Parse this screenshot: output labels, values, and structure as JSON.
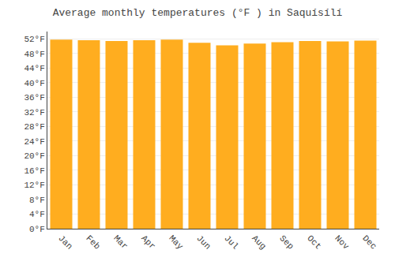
{
  "chart_data": {
    "type": "bar",
    "title": "Average monthly temperatures (°F ) in Saquísílí",
    "categories": [
      "Jan",
      "Feb",
      "Mar",
      "Apr",
      "May",
      "Jun",
      "Jul",
      "Aug",
      "Sep",
      "Oct",
      "Nov",
      "Dec"
    ],
    "values": [
      51.8,
      51.6,
      51.4,
      51.6,
      51.8,
      50.9,
      50.2,
      50.7,
      51.1,
      51.4,
      51.3,
      51.5
    ],
    "color": "#FFAD1F",
    "ylim": [
      0,
      54
    ],
    "yticks": [
      {
        "value": 0,
        "label": "0°F"
      },
      {
        "value": 4,
        "label": "4°F"
      },
      {
        "value": 8,
        "label": "8°F"
      },
      {
        "value": 12,
        "label": "12°F"
      },
      {
        "value": 16,
        "label": "16°F"
      },
      {
        "value": 20,
        "label": "20°F"
      },
      {
        "value": 24,
        "label": "24°F"
      },
      {
        "value": 28,
        "label": "28°F"
      },
      {
        "value": 32,
        "label": "32°F"
      },
      {
        "value": 36,
        "label": "36°F"
      },
      {
        "value": 40,
        "label": "40°F"
      },
      {
        "value": 44,
        "label": "44°F"
      },
      {
        "value": 48,
        "label": "48°F"
      },
      {
        "value": 52,
        "label": "52°F"
      }
    ],
    "grid": true
  }
}
